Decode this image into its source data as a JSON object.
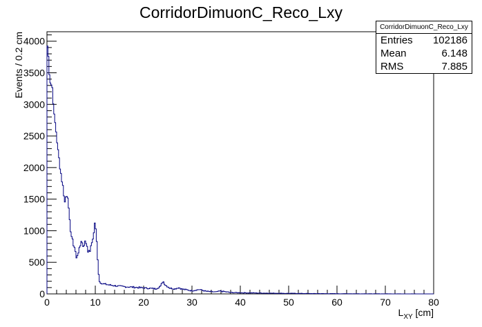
{
  "chart_data": {
    "type": "histogram",
    "title": "CorridorDimuonC_Reco_Lxy",
    "xlabel": "L",
    "xlabel_sub": "XY",
    "xlabel_unit": " [cm]",
    "ylabel": "Events / 0.2 cm",
    "xlim": [
      0,
      80
    ],
    "ylim": [
      0,
      4150
    ],
    "xticks": [
      "0",
      "10",
      "20",
      "30",
      "40",
      "50",
      "60",
      "70",
      "80"
    ],
    "yticks": [
      "0",
      "500",
      "1000",
      "1500",
      "2000",
      "2500",
      "3000",
      "3500",
      "4000"
    ],
    "grid": false,
    "line_color": "#000080",
    "bin_width": 0.2,
    "stats": {
      "name": "CorridorDimuonC_Reco_Lxy",
      "entries_label": "Entries",
      "entries": "102186",
      "mean_label": "Mean",
      "mean": "6.148",
      "rms_label": "RMS",
      "rms": "7.885"
    },
    "anchors": [
      [
        0,
        3950
      ],
      [
        0.2,
        3900
      ],
      [
        0.4,
        3600
      ],
      [
        0.6,
        3450
      ],
      [
        0.8,
        3300
      ],
      [
        1.0,
        3330
      ],
      [
        1.2,
        3200
      ],
      [
        1.5,
        2800
      ],
      [
        1.8,
        2650
      ],
      [
        2.0,
        2500
      ],
      [
        2.3,
        2250
      ],
      [
        2.6,
        2080
      ],
      [
        3.0,
        1850
      ],
      [
        3.4,
        1650
      ],
      [
        3.7,
        1450
      ],
      [
        4.0,
        1580
      ],
      [
        4.3,
        1560
      ],
      [
        4.6,
        1200
      ],
      [
        5.0,
        950
      ],
      [
        5.4,
        800
      ],
      [
        5.8,
        720
      ],
      [
        6.1,
        560
      ],
      [
        6.4,
        650
      ],
      [
        6.8,
        720
      ],
      [
        7.1,
        850
      ],
      [
        7.5,
        760
      ],
      [
        7.9,
        820
      ],
      [
        8.2,
        800
      ],
      [
        8.6,
        650
      ],
      [
        9.0,
        700
      ],
      [
        9.4,
        850
      ],
      [
        9.7,
        960
      ],
      [
        9.9,
        1130
      ],
      [
        10.2,
        950
      ],
      [
        10.5,
        560
      ],
      [
        10.8,
        200
      ],
      [
        11.5,
        160
      ],
      [
        13,
        140
      ],
      [
        15,
        120
      ],
      [
        17,
        110
      ],
      [
        19,
        100
      ],
      [
        21,
        90
      ],
      [
        22.5,
        80
      ],
      [
        23.5,
        120
      ],
      [
        24.0,
        205
      ],
      [
        24.5,
        140
      ],
      [
        25.5,
        90
      ],
      [
        26.5,
        80
      ],
      [
        27.2,
        100
      ],
      [
        28,
        75
      ],
      [
        30,
        50
      ],
      [
        31.5,
        70
      ],
      [
        33,
        40
      ],
      [
        35,
        30
      ],
      [
        35.8,
        45
      ],
      [
        38,
        22
      ],
      [
        40,
        18
      ],
      [
        45,
        12
      ],
      [
        50,
        8
      ],
      [
        55,
        5
      ],
      [
        60,
        3
      ],
      [
        70,
        1
      ],
      [
        80,
        0
      ]
    ]
  }
}
